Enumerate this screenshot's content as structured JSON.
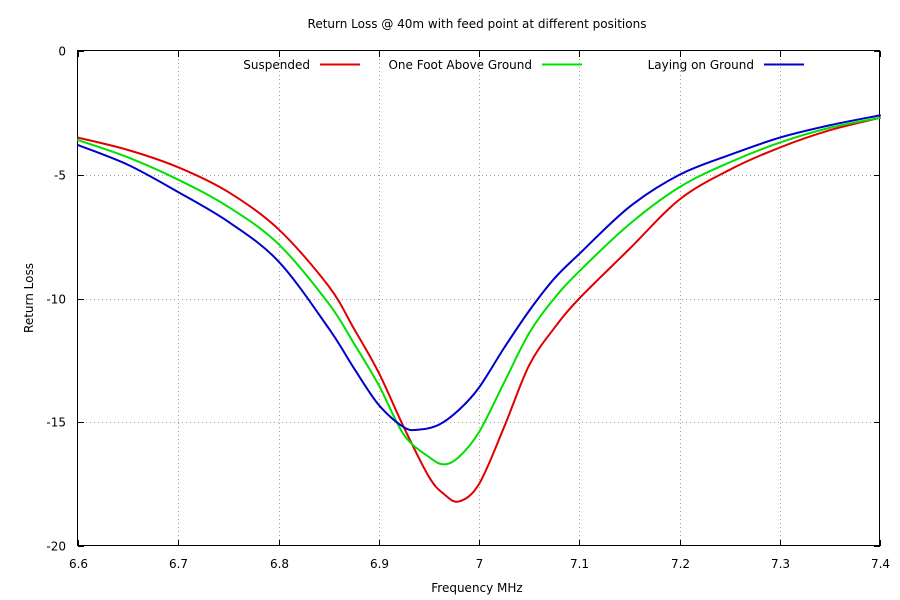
{
  "chart_data": {
    "type": "line",
    "title": "Return Loss @ 40m with feed point at different positions",
    "xlabel": "Frequency MHz",
    "ylabel": "Return Loss",
    "xlim": [
      6.6,
      7.4
    ],
    "ylim": [
      -20,
      0
    ],
    "xticks": [
      "6.6",
      "6.7",
      "6.8",
      "6.9",
      "7",
      "7.1",
      "7.2",
      "7.3",
      "7.4"
    ],
    "yticks": [
      "0",
      "-5",
      "-10",
      "-15",
      "-20"
    ],
    "grid": true,
    "legend_position": "top",
    "series": [
      {
        "name": "Suspended",
        "color": "#e00000",
        "x": [
          6.6,
          6.65,
          6.7,
          6.75,
          6.8,
          6.85,
          6.875,
          6.9,
          6.925,
          6.95,
          6.965,
          6.98,
          7.0,
          7.025,
          7.05,
          7.075,
          7.1,
          7.15,
          7.2,
          7.25,
          7.3,
          7.35,
          7.4
        ],
        "y": [
          -3.5,
          -4.0,
          -4.7,
          -5.7,
          -7.2,
          -9.5,
          -11.2,
          -13.0,
          -15.2,
          -17.2,
          -17.9,
          -18.2,
          -17.5,
          -15.2,
          -12.7,
          -11.2,
          -10.0,
          -8.0,
          -6.0,
          -4.8,
          -3.9,
          -3.2,
          -2.7
        ]
      },
      {
        "name": "One Foot Above Ground",
        "color": "#00e000",
        "x": [
          6.6,
          6.65,
          6.7,
          6.75,
          6.8,
          6.85,
          6.875,
          6.9,
          6.925,
          6.95,
          6.965,
          6.98,
          7.0,
          7.025,
          7.05,
          7.075,
          7.1,
          7.15,
          7.2,
          7.25,
          7.3,
          7.35,
          7.4
        ],
        "y": [
          -3.6,
          -4.3,
          -5.2,
          -6.3,
          -7.8,
          -10.2,
          -11.8,
          -13.5,
          -15.5,
          -16.4,
          -16.7,
          -16.4,
          -15.4,
          -13.4,
          -11.4,
          -10.0,
          -8.9,
          -7.0,
          -5.5,
          -4.5,
          -3.7,
          -3.1,
          -2.7
        ]
      },
      {
        "name": "Laying on Ground",
        "color": "#0000cc",
        "x": [
          6.6,
          6.65,
          6.7,
          6.75,
          6.8,
          6.85,
          6.875,
          6.9,
          6.925,
          6.94,
          6.96,
          6.98,
          7.0,
          7.025,
          7.05,
          7.075,
          7.1,
          7.15,
          7.2,
          7.25,
          7.3,
          7.35,
          7.4
        ],
        "y": [
          -3.8,
          -4.6,
          -5.7,
          -6.9,
          -8.5,
          -11.2,
          -12.8,
          -14.3,
          -15.2,
          -15.3,
          -15.1,
          -14.5,
          -13.6,
          -12.0,
          -10.5,
          -9.2,
          -8.2,
          -6.3,
          -5.0,
          -4.2,
          -3.5,
          -3.0,
          -2.6
        ]
      }
    ]
  }
}
